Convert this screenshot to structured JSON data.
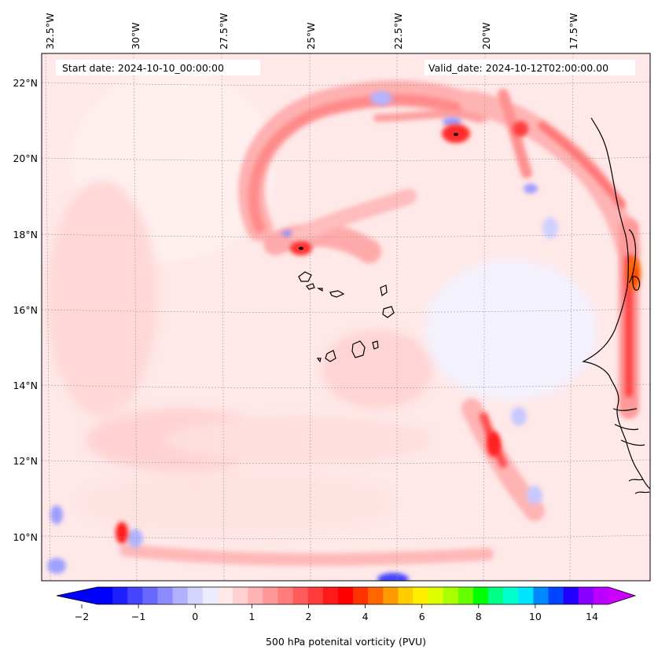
{
  "header": {
    "start_date": "Start date: 2024-10-10_00:00:00",
    "valid_date": "Valid_date: 2024-10-12T02:00:00.00"
  },
  "lon_ticks": [
    "32.5°W",
    "30°W",
    "27.5°W",
    "25°W",
    "22.5°W",
    "20°W",
    "17.5°W"
  ],
  "lat_ticks": [
    "22°N",
    "20°N",
    "18°N",
    "16°N",
    "14°N",
    "12°N",
    "10°N"
  ],
  "colorbar": {
    "label": "500 hPa potenital vorticity (PVU)",
    "tick_labels": [
      "−2",
      "−1",
      "0",
      "1",
      "2",
      "4",
      "6",
      "8",
      "10",
      "14"
    ],
    "colors": [
      "#0000ff",
      "#2020ff",
      "#4444ff",
      "#6868ff",
      "#8c8cff",
      "#b0b0ff",
      "#d4d4ff",
      "#ececff",
      "#ffe8e8",
      "#ffd0d0",
      "#ffb4b4",
      "#ff9898",
      "#ff7c7c",
      "#ff5c5c",
      "#ff3c3c",
      "#ff1a1a",
      "#ff0000",
      "#ff3300",
      "#ff6600",
      "#ff9900",
      "#ffcc00",
      "#ffee00",
      "#ddff00",
      "#aaff00",
      "#66ff00",
      "#00ff00",
      "#00ff88",
      "#00ffcc",
      "#00e5ff",
      "#0088ff",
      "#0044ff",
      "#2200ff",
      "#8800ff",
      "#bb00ff"
    ],
    "under_color": "#0000ff",
    "over_color": "#cc00ff"
  },
  "chart_data": {
    "type": "contour_map",
    "variable": "500 hPa potenital vorticity (PVU)",
    "lon_range": [
      "33°W",
      "15.5°W"
    ],
    "lat_range": [
      "9°N",
      "22.8°N"
    ],
    "levels": [
      -2,
      -1.75,
      -1.5,
      -1.25,
      -1,
      -0.75,
      -0.5,
      -0.25,
      0,
      0.25,
      0.5,
      0.75,
      1,
      1.25,
      1.5,
      1.75,
      2,
      2.5,
      3,
      3.5,
      4,
      4.5,
      5,
      5.5,
      6,
      6.5,
      7,
      7.5,
      8,
      9,
      10,
      12,
      14
    ],
    "extend": "both",
    "grid": true,
    "features": [
      {
        "type": "max",
        "lon": -25.1,
        "lat": 17.6,
        "value": 4
      },
      {
        "type": "max",
        "lon": -21.0,
        "lat": 20.6,
        "value": 3.5
      },
      {
        "type": "max",
        "lon": -15.8,
        "lat": 17.2,
        "value": 5
      },
      {
        "type": "max",
        "lon": -20.3,
        "lat": 12.5,
        "value": 3
      },
      {
        "type": "max",
        "lon": -30.2,
        "lat": 10.1,
        "value": 2.5
      },
      {
        "type": "min",
        "lon": -22.1,
        "lat": 9.0,
        "value": -2
      }
    ]
  }
}
